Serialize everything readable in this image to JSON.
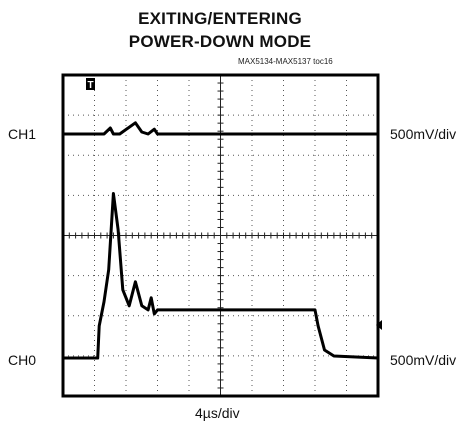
{
  "chart_data": {
    "type": "line",
    "title": [
      "EXITING/ENTERING",
      "POWER-DOWN MODE"
    ],
    "doc_id": "MAX5134-MAX5137 toc16",
    "xlabel": "4µs/div",
    "grid": true,
    "grid_divisions": {
      "x": 10,
      "y": 8
    },
    "trigger_marker": "T",
    "series": [
      {
        "name": "CH1",
        "scale": "500mV/div",
        "points": [
          [
            0,
            0
          ],
          [
            1.3,
            0
          ],
          [
            1.5,
            0.15
          ],
          [
            1.6,
            0
          ],
          [
            1.8,
            0
          ],
          [
            2.3,
            0.28
          ],
          [
            2.5,
            0.05
          ],
          [
            2.7,
            0
          ],
          [
            2.9,
            0.12
          ],
          [
            3.0,
            0
          ],
          [
            10,
            0
          ]
        ]
      },
      {
        "name": "CH0",
        "scale": "500mV/div",
        "points": [
          [
            0,
            0
          ],
          [
            1.1,
            0
          ],
          [
            1.15,
            0.8
          ],
          [
            1.3,
            1.4
          ],
          [
            1.45,
            2.2
          ],
          [
            1.6,
            4.1
          ],
          [
            1.75,
            3.2
          ],
          [
            1.9,
            1.7
          ],
          [
            2.1,
            1.3
          ],
          [
            2.3,
            1.9
          ],
          [
            2.5,
            1.3
          ],
          [
            2.7,
            1.2
          ],
          [
            2.8,
            1.5
          ],
          [
            2.9,
            1.1
          ],
          [
            3.0,
            1.2
          ],
          [
            8.0,
            1.2
          ],
          [
            8.1,
            0.8
          ],
          [
            8.3,
            0.2
          ],
          [
            8.6,
            0.05
          ],
          [
            10,
            0
          ]
        ]
      }
    ]
  }
}
